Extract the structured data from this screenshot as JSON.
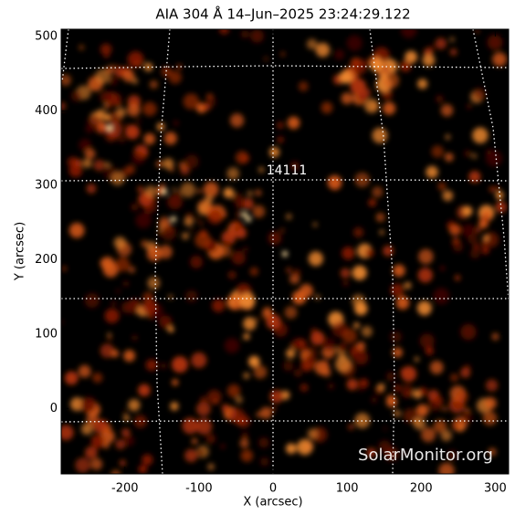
{
  "chart_data": {
    "type": "image",
    "title": "AIA 304 Å 14–Jun–2025 23:24:29.122",
    "x_label": "X (arcsec)",
    "y_label": "Y (arcsec)",
    "xlim": [
      -286,
      318
    ],
    "ylim": [
      -88,
      510
    ],
    "xticks": [
      -200,
      -100,
      0,
      100,
      200,
      300
    ],
    "yticks": [
      0,
      100,
      200,
      300,
      400,
      500
    ],
    "annotations": [
      "14111"
    ],
    "watermark": "SolarMonitor.org"
  }
}
